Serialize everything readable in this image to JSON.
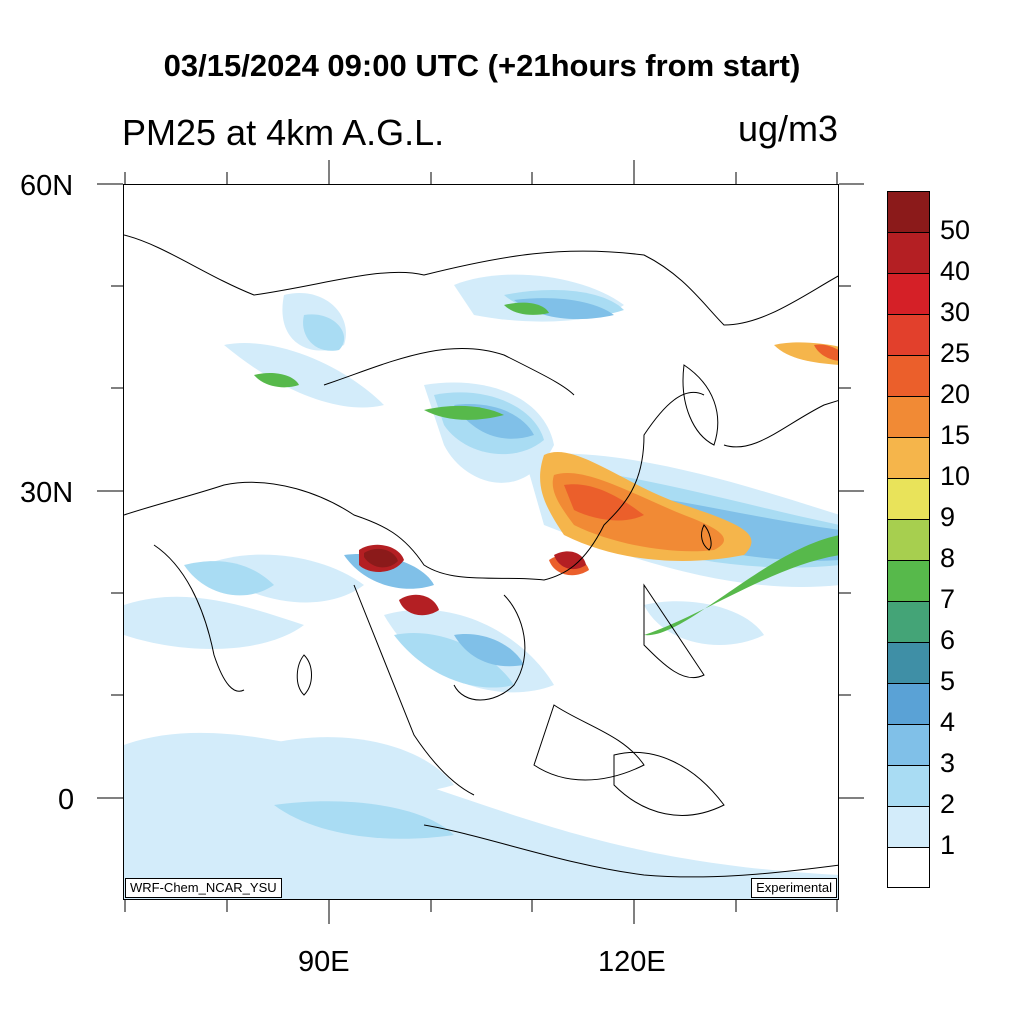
{
  "title": "03/15/2024 09:00 UTC (+21hours from start)",
  "variable": "PM25 at 4km A.G.L.",
  "units": "ug/m3",
  "lat_labels": [
    "60N",
    "30N",
    "0"
  ],
  "lon_labels": [
    "90E",
    "120E"
  ],
  "model_tag": "WRF-Chem_NCAR_YSU",
  "experimental_tag": "Experimental",
  "colorbar": {
    "labels": [
      "50",
      "40",
      "30",
      "25",
      "20",
      "15",
      "10",
      "9",
      "8",
      "7",
      "6",
      "5",
      "4",
      "3",
      "2",
      "1"
    ],
    "colors": [
      "#8b1a1a",
      "#b41f23",
      "#d52027",
      "#e2402c",
      "#eb5f2b",
      "#f18a35",
      "#f5b54b",
      "#e9e35a",
      "#a7cf4f",
      "#57b94b",
      "#44a477",
      "#3f8fa6",
      "#5aa2d6",
      "#80c0e8",
      "#a9dcf3",
      "#d3ecfa",
      "#ffffff"
    ]
  }
}
